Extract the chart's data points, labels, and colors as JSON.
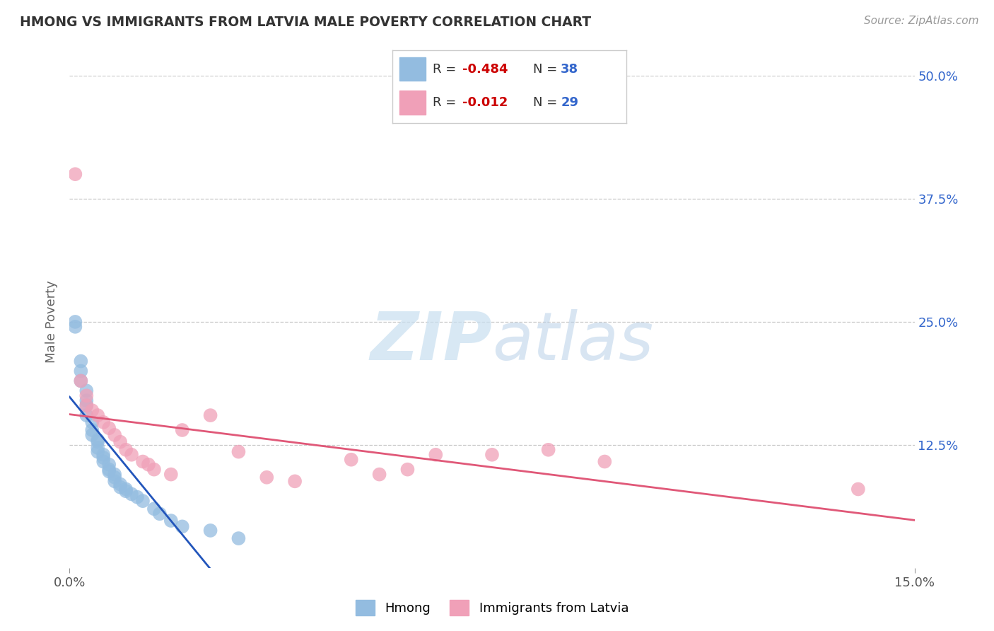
{
  "title": "HMONG VS IMMIGRANTS FROM LATVIA MALE POVERTY CORRELATION CHART",
  "source": "Source: ZipAtlas.com",
  "ylabel": "Male Poverty",
  "watermark_zip": "ZIP",
  "watermark_atlas": "atlas",
  "hmong_R": -0.484,
  "hmong_N": 38,
  "latvia_R": -0.012,
  "latvia_N": 29,
  "xlim": [
    0.0,
    0.15
  ],
  "ylim": [
    0.0,
    0.5
  ],
  "ytick_positions": [
    0.125,
    0.25,
    0.375,
    0.5
  ],
  "ytick_labels": [
    "12.5%",
    "25.0%",
    "37.5%",
    "50.0%"
  ],
  "grid_color": "#c8c8c8",
  "hmong_color": "#93bce0",
  "latvia_color": "#f0a0b8",
  "hmong_line_color": "#2255bb",
  "latvia_line_color": "#e05878",
  "title_color": "#333333",
  "axis_label_color": "#666666",
  "legend_r_color": "#cc0000",
  "legend_n_color": "#3366cc",
  "hmong_x": [
    0.001,
    0.001,
    0.002,
    0.002,
    0.002,
    0.003,
    0.003,
    0.003,
    0.003,
    0.004,
    0.004,
    0.004,
    0.005,
    0.005,
    0.005,
    0.005,
    0.006,
    0.006,
    0.006,
    0.007,
    0.007,
    0.007,
    0.008,
    0.008,
    0.008,
    0.009,
    0.009,
    0.01,
    0.01,
    0.011,
    0.012,
    0.013,
    0.015,
    0.016,
    0.018,
    0.02,
    0.025,
    0.03
  ],
  "hmong_y": [
    0.245,
    0.25,
    0.21,
    0.2,
    0.19,
    0.18,
    0.17,
    0.165,
    0.155,
    0.148,
    0.14,
    0.135,
    0.13,
    0.128,
    0.122,
    0.118,
    0.115,
    0.112,
    0.108,
    0.105,
    0.1,
    0.098,
    0.095,
    0.092,
    0.088,
    0.085,
    0.082,
    0.08,
    0.078,
    0.075,
    0.072,
    0.068,
    0.06,
    0.055,
    0.048,
    0.042,
    0.038,
    0.03
  ],
  "latvia_x": [
    0.001,
    0.002,
    0.003,
    0.003,
    0.004,
    0.005,
    0.006,
    0.007,
    0.008,
    0.009,
    0.01,
    0.011,
    0.013,
    0.014,
    0.015,
    0.018,
    0.02,
    0.025,
    0.03,
    0.035,
    0.04,
    0.05,
    0.055,
    0.06,
    0.065,
    0.075,
    0.085,
    0.095,
    0.14
  ],
  "latvia_y": [
    0.4,
    0.19,
    0.175,
    0.165,
    0.16,
    0.155,
    0.148,
    0.142,
    0.135,
    0.128,
    0.12,
    0.115,
    0.108,
    0.105,
    0.1,
    0.095,
    0.14,
    0.155,
    0.118,
    0.092,
    0.088,
    0.11,
    0.095,
    0.1,
    0.115,
    0.115,
    0.12,
    0.108,
    0.08
  ],
  "background_color": "#ffffff",
  "plot_bg_color": "#ffffff"
}
